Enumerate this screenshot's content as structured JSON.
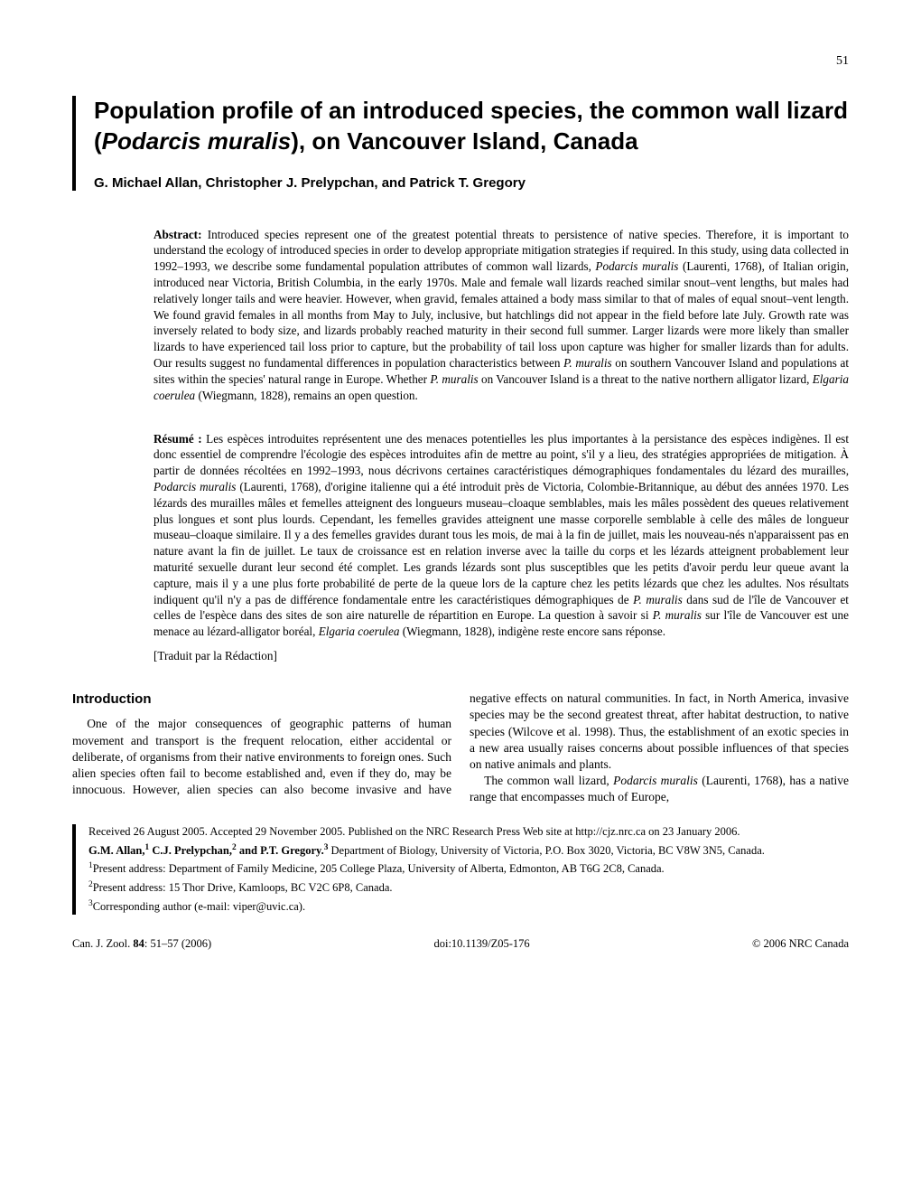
{
  "page_number": "51",
  "title": "Population profile of an introduced species, the common wall lizard (Podarcis muralis), on Vancouver Island, Canada",
  "authors": "G. Michael Allan, Christopher J. Prelypchan, and Patrick T. Gregory",
  "abstract_label": "Abstract:",
  "abstract_text": " Introduced species represent one of the greatest potential threats to persistence of native species. Therefore, it is important to understand the ecology of introduced species in order to develop appropriate mitigation strategies if required. In this study, using data collected in 1992–1993, we describe some fundamental population attributes of common wall lizards, Podarcis muralis (Laurenti, 1768), of Italian origin, introduced near Victoria, British Columbia, in the early 1970s. Male and female wall lizards reached similar snout–vent lengths, but males had relatively longer tails and were heavier. However, when gravid, females attained a body mass similar to that of males of equal snout–vent length. We found gravid females in all months from May to July, inclusive, but hatchlings did not appear in the field before late July. Growth rate was inversely related to body size, and lizards probably reached maturity in their second full summer. Larger lizards were more likely than smaller lizards to have experienced tail loss prior to capture, but the probability of tail loss upon capture was higher for smaller lizards than for adults. Our results suggest no fundamental differences in population characteristics between P. muralis on southern Vancouver Island and populations at sites within the species' natural range in Europe. Whether P. muralis on Vancouver Island is a threat to the native northern alligator lizard, Elgaria coerulea (Wiegmann, 1828), remains an open question.",
  "resume_label": "Résumé :",
  "resume_text": " Les espèces introduites représentent une des menaces potentielles les plus importantes à la persistance des espèces indigènes. Il est donc essentiel de comprendre l'écologie des espèces introduites afin de mettre au point, s'il y a lieu, des stratégies appropriées de mitigation. À partir de données récoltées en 1992–1993, nous décrivons certaines caractéristiques démographiques fondamentales du lézard des murailles, Podarcis muralis (Laurenti, 1768), d'origine italienne qui a été introduit près de Victoria, Colombie-Britannique, au début des années 1970. Les lézards des murailles mâles et femelles atteignent des longueurs museau–cloaque semblables, mais les mâles possèdent des queues relativement plus longues et sont plus lourds. Cependant, les femelles gravides atteignent une masse corporelle semblable à celle des mâles de longueur museau–cloaque similaire. Il y a des femelles gravides durant tous les mois, de mai à la fin de juillet, mais les nouveau-nés n'apparaissent pas en nature avant la fin de juillet. Le taux de croissance est en relation inverse avec la taille du corps et les lézards atteignent probablement leur maturité sexuelle durant leur second été complet. Les grands lézards sont plus susceptibles que les petits d'avoir perdu leur queue avant la capture, mais il y a une plus forte probabilité de perte de la queue lors de la capture chez les petits lézards que chez les adultes. Nos résultats indiquent qu'il n'y a pas de différence fondamentale entre les caractéristiques démographiques de P. muralis dans sud de l'île de Vancouver et celles de l'espèce dans des sites de son aire naturelle de répartition en Europe. La question à savoir si P. muralis sur l'île de Vancouver est une menace au lézard-alligator boréal, Elgaria coerulea (Wiegmann, 1828), indigène reste encore sans réponse.",
  "translated_note": "[Traduit par la Rédaction]",
  "introduction_heading": "Introduction",
  "intro_p1": "One of the major consequences of geographic patterns of human movement and transport is the frequent relocation, either accidental or deliberate, of organisms from their native environments to foreign ones. Such alien species often fail to become established and, even if they do, may be innocuous. However, alien species can also become invasive and have negative effects on natural communities. In fact, in North America, invasive species may be the second greatest threat, after habitat destruction, to native species (Wilcove et al. 1998). Thus, the establishment of an exotic species in a new area usually raises concerns about possible influences of that species on native animals and plants.",
  "intro_p2": "The common wall lizard, Podarcis muralis (Laurenti, 1768), has a native range that encompasses much of Europe,",
  "footer": {
    "received": "Received 26 August 2005. Accepted 29 November 2005. Published on the NRC Research Press Web site at http://cjz.nrc.ca on 23 January 2006.",
    "affiliation_names": "G.M. Allan,¹ C.J. Prelypchan,² and P.T. Gregory.³",
    "affiliation_dept": " Department of Biology, University of Victoria, P.O. Box 3020, Victoria, BC V8W 3N5, Canada.",
    "note1": "¹Present address: Department of Family Medicine, 205 College Plaza, University of Alberta, Edmonton, AB T6G 2C8, Canada.",
    "note2": "²Present address: 15 Thor Drive, Kamloops, BC V2C 6P8, Canada.",
    "note3": "³Corresponding author (e-mail: viper@uvic.ca)."
  },
  "bottom": {
    "left": "Can. J. Zool. 84: 51–57 (2006)",
    "center": "doi:10.1139/Z05-176",
    "right": "© 2006 NRC Canada"
  }
}
